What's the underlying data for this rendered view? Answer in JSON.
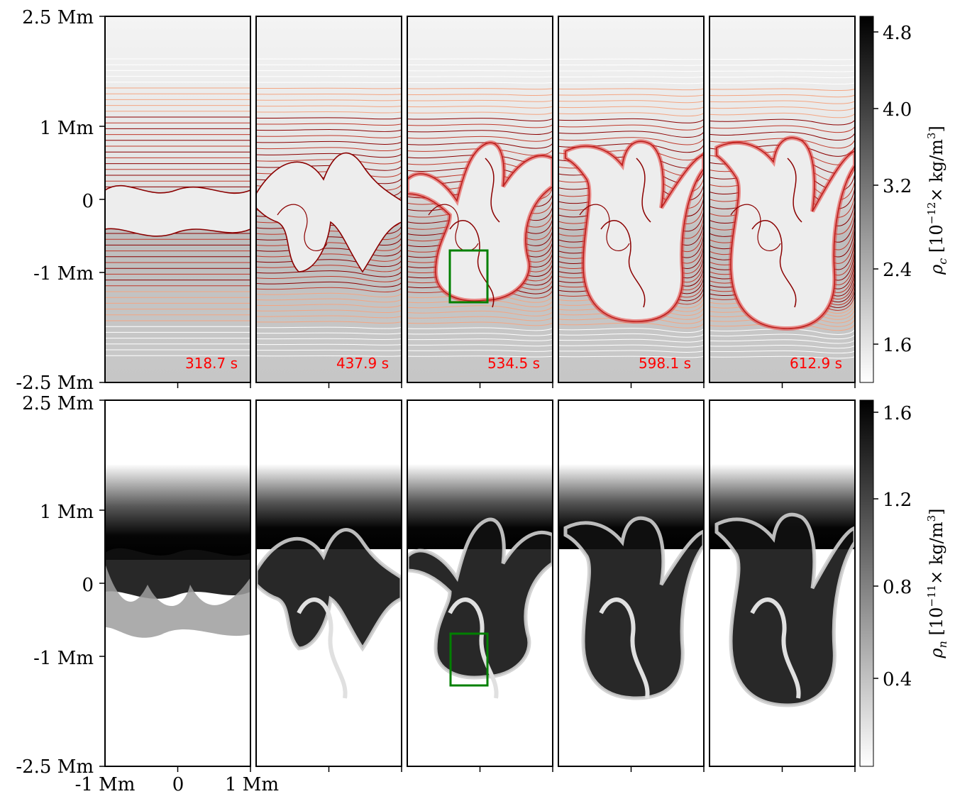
{
  "top_row": {
    "y_ticks": [
      "2.5 Mm",
      "1 Mm",
      "0",
      "-1 Mm",
      "-2.5 Mm"
    ],
    "time_stamps": [
      "318.7 s",
      "437.9 s",
      "534.5 s",
      "598.1 s",
      "612.9 s"
    ],
    "colorbar": {
      "ticks": [
        "4.8",
        "4.0",
        "3.2",
        "2.4",
        "1.6"
      ],
      "label_prefix": "ρ",
      "label_sub": "c",
      "label_text": " [10",
      "label_exp": "−12",
      "label_unit": "× kg/m",
      "label_unit_exp": "3",
      "label_close": "]"
    }
  },
  "bottom_row": {
    "y_ticks": [
      "2.5 Mm",
      "1 Mm",
      "0",
      "-1 Mm",
      "-2.5 Mm"
    ],
    "x_ticks": [
      "-1 Mm",
      "0",
      "1 Mm"
    ],
    "colorbar": {
      "ticks": [
        "1.6",
        "1.2",
        "0.8",
        "0.4"
      ],
      "label_prefix": "ρ",
      "label_sub": "n",
      "label_text": " [10",
      "label_exp": "−11",
      "label_unit": "× kg/m",
      "label_unit_exp": "3",
      "label_close": "]"
    }
  },
  "colors": {
    "field_line_dark": "#8b0000",
    "field_line_light": "#f4a582",
    "zoom_box": "#008000",
    "time_stamp": "#ff0000"
  }
}
